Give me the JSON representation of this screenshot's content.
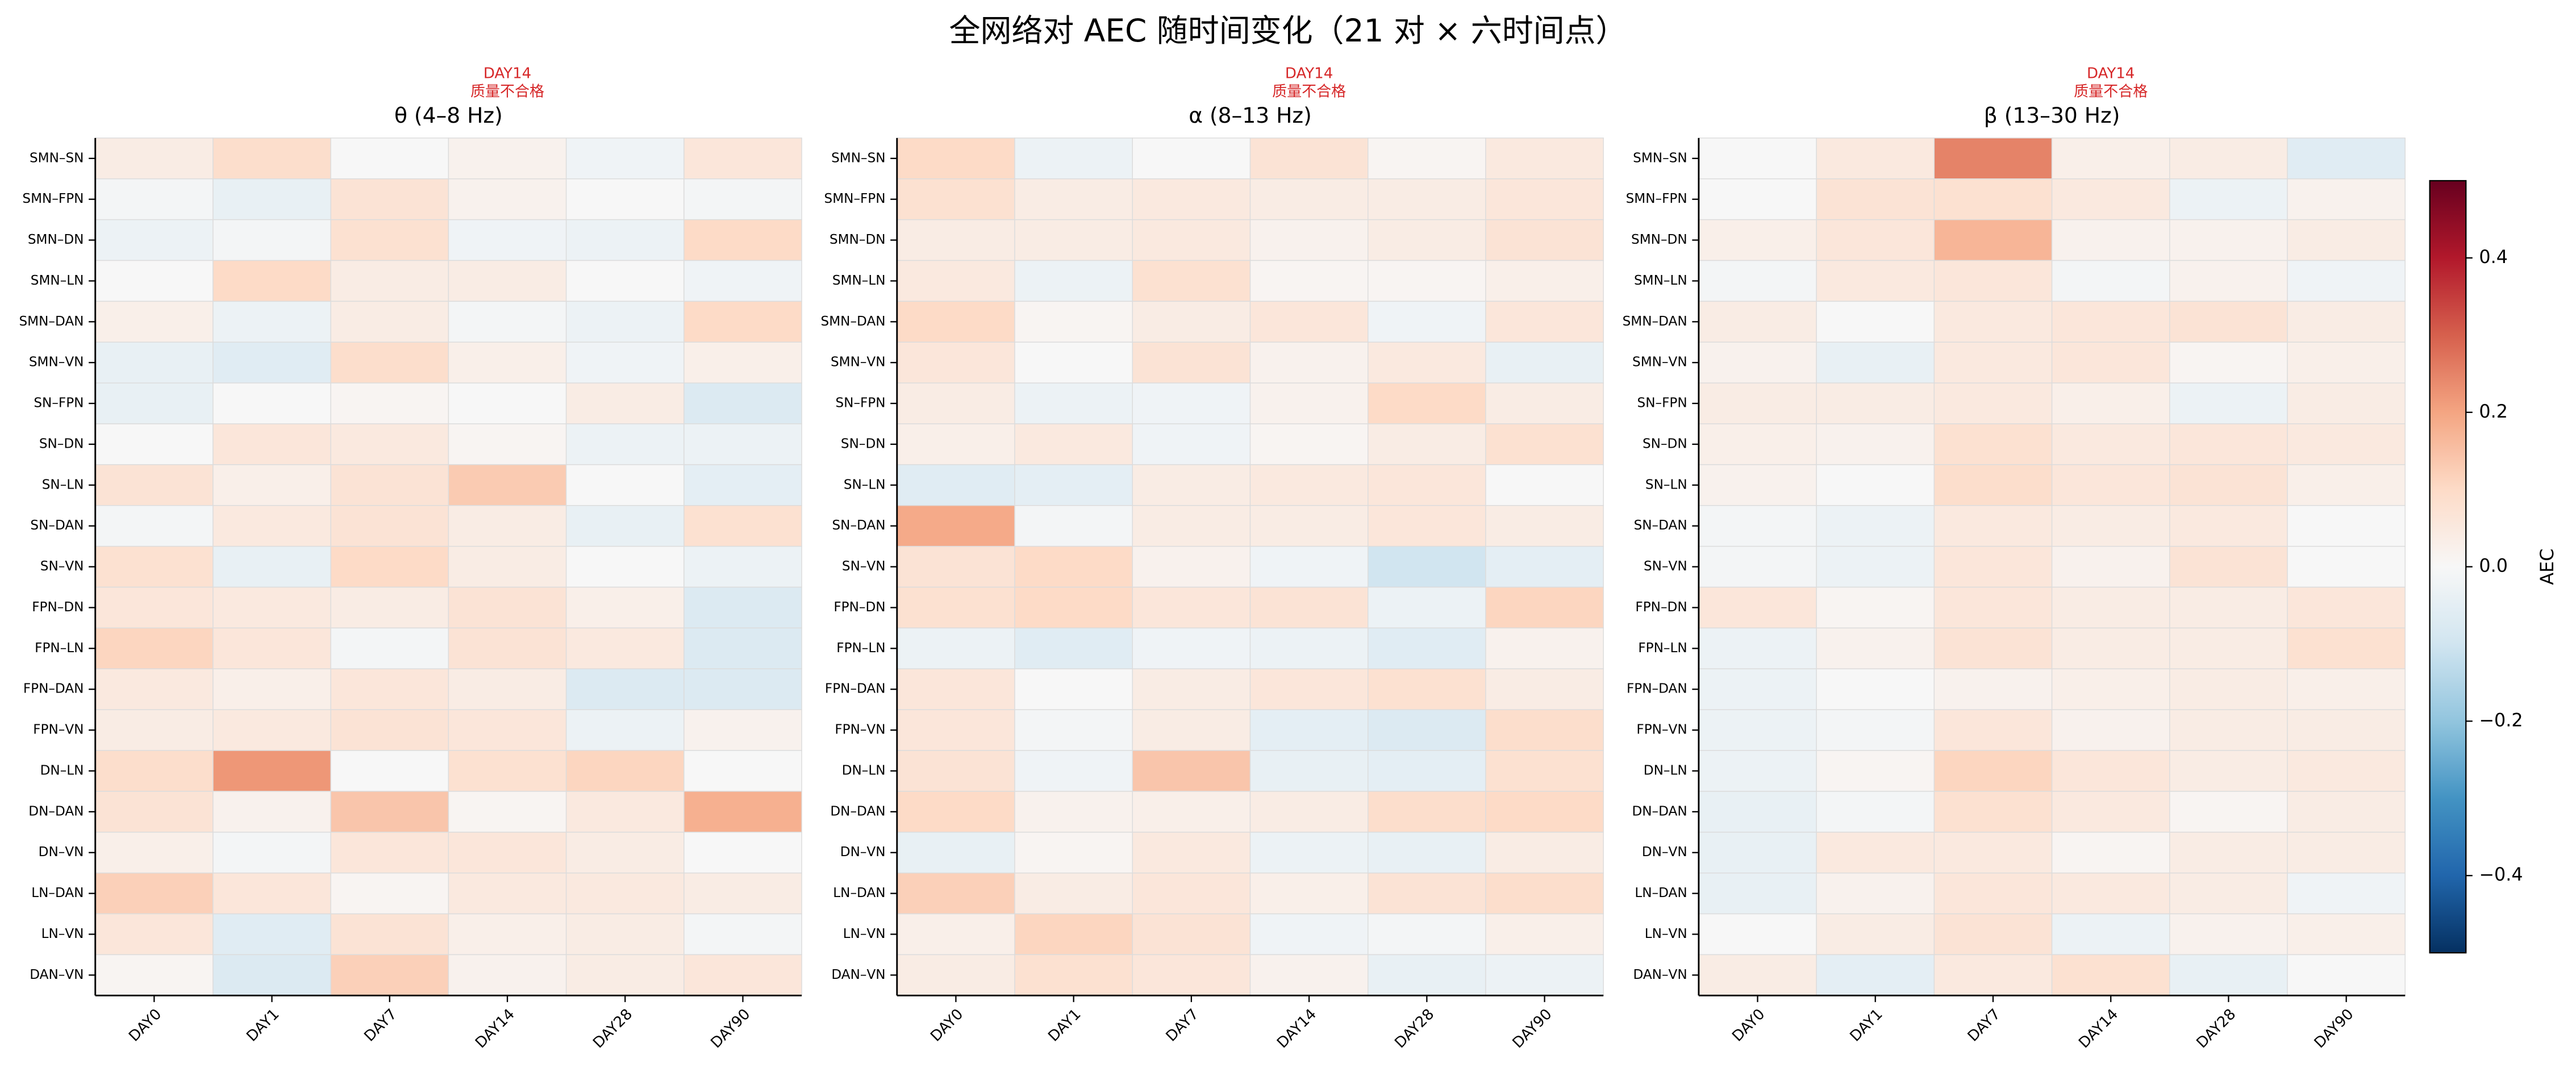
{
  "title": "全网络对 AEC 随时间变化（21 对 × 六时间点）",
  "colorbar": {
    "label": "AEC",
    "colormap": "RdBu_r",
    "vlim": [
      -0.5,
      0.5
    ],
    "ticks": [
      {
        "value": -0.4,
        "label": "−0.4"
      },
      {
        "value": -0.2,
        "label": "−0.2"
      },
      {
        "value": 0,
        "label": "0.0"
      },
      0.2,
      0.4
    ]
  },
  "chart_data": [
    {
      "type": "heatmap",
      "title": "θ (4–8 Hz)",
      "annotation": [
        "DAY14",
        "质量不合格"
      ],
      "categories": [
        "DAY0",
        "DAY1",
        "DAY7",
        "DAY14",
        "DAY28",
        "DAY90"
      ],
      "rows": [
        "SMN–SN",
        "SMN–FPN",
        "SMN–DN",
        "SMN–LN",
        "SMN–DAN",
        "SMN–VN",
        "SN–FPN",
        "SN–DN",
        "SN–LN",
        "SN–DAN",
        "SN–VN",
        "FPN–DN",
        "FPN–LN",
        "FPN–DAN",
        "FPN–VN",
        "DN–LN",
        "DN–DAN",
        "DN–VN",
        "LN–DAN",
        "LN–VN",
        "DAN–VN"
      ],
      "values": [
        [
          0.04,
          0.09,
          0.0,
          0.02,
          -0.02,
          0.06
        ],
        [
          -0.01,
          -0.04,
          0.07,
          0.02,
          0.0,
          -0.01
        ],
        [
          -0.03,
          -0.01,
          0.08,
          -0.02,
          -0.03,
          0.1
        ],
        [
          0.0,
          0.1,
          0.04,
          0.04,
          0.0,
          -0.02
        ],
        [
          0.03,
          -0.03,
          0.04,
          -0.01,
          -0.03,
          0.1
        ],
        [
          -0.04,
          -0.06,
          0.09,
          0.03,
          -0.02,
          0.03
        ],
        [
          -0.04,
          0.0,
          0.01,
          0.0,
          0.04,
          -0.07
        ],
        [
          0.0,
          0.06,
          0.05,
          0.01,
          -0.03,
          -0.03
        ],
        [
          0.07,
          0.03,
          0.07,
          0.13,
          0.0,
          -0.05
        ],
        [
          -0.01,
          0.05,
          0.07,
          0.04,
          -0.04,
          0.08
        ],
        [
          0.08,
          -0.04,
          0.1,
          0.04,
          0.0,
          -0.03
        ],
        [
          0.06,
          0.05,
          0.04,
          0.07,
          0.03,
          -0.07
        ],
        [
          0.11,
          0.06,
          -0.01,
          0.07,
          0.05,
          -0.07
        ],
        [
          0.05,
          0.03,
          0.06,
          0.04,
          -0.07,
          -0.07
        ],
        [
          0.04,
          0.05,
          0.07,
          0.06,
          -0.03,
          0.02
        ],
        [
          0.09,
          0.22,
          0.0,
          0.08,
          0.11,
          0.0
        ],
        [
          0.07,
          0.02,
          0.14,
          0.01,
          0.05,
          0.18
        ],
        [
          0.03,
          -0.01,
          0.06,
          0.06,
          0.04,
          0.0
        ],
        [
          0.12,
          0.06,
          0.01,
          0.05,
          0.05,
          0.04
        ],
        [
          0.06,
          -0.06,
          0.07,
          0.03,
          0.04,
          -0.01
        ],
        [
          0.01,
          -0.07,
          0.12,
          0.02,
          0.04,
          0.06
        ]
      ]
    },
    {
      "type": "heatmap",
      "title": "α (8–13 Hz)",
      "annotation": [
        "DAY14",
        "质量不合格"
      ],
      "categories": [
        "DAY0",
        "DAY1",
        "DAY7",
        "DAY14",
        "DAY28",
        "DAY90"
      ],
      "rows": [
        "SMN–SN",
        "SMN–FPN",
        "SMN–DN",
        "SMN–LN",
        "SMN–DAN",
        "SMN–VN",
        "SN–FPN",
        "SN–DN",
        "SN–LN",
        "SN–DAN",
        "SN–VN",
        "FPN–DN",
        "FPN–LN",
        "FPN–DAN",
        "FPN–VN",
        "DN–LN",
        "DN–DAN",
        "DN–VN",
        "LN–DAN",
        "LN–VN",
        "DAN–VN"
      ],
      "values": [
        [
          0.1,
          -0.03,
          0.0,
          0.07,
          0.01,
          0.05
        ],
        [
          0.08,
          0.04,
          0.05,
          0.04,
          0.04,
          0.06
        ],
        [
          0.04,
          0.04,
          0.05,
          0.02,
          0.04,
          0.07
        ],
        [
          0.05,
          -0.03,
          0.08,
          0.01,
          0.01,
          0.03
        ],
        [
          0.1,
          0.01,
          0.04,
          0.06,
          -0.02,
          0.06
        ],
        [
          0.06,
          0.0,
          0.07,
          0.02,
          0.05,
          -0.04
        ],
        [
          0.04,
          -0.03,
          -0.02,
          0.02,
          0.1,
          0.04
        ],
        [
          0.03,
          0.05,
          -0.02,
          0.01,
          0.04,
          0.08
        ],
        [
          -0.06,
          -0.05,
          0.04,
          0.05,
          0.06,
          0.0
        ],
        [
          0.19,
          -0.01,
          0.04,
          0.04,
          0.06,
          0.04
        ],
        [
          0.07,
          0.1,
          0.02,
          -0.02,
          -0.1,
          -0.05
        ],
        [
          0.08,
          0.1,
          0.06,
          0.07,
          -0.03,
          0.11
        ],
        [
          -0.03,
          -0.06,
          -0.02,
          -0.03,
          -0.06,
          0.02
        ],
        [
          0.06,
          0.0,
          0.04,
          0.06,
          0.08,
          0.04
        ],
        [
          0.06,
          -0.01,
          0.04,
          -0.05,
          -0.07,
          0.09
        ],
        [
          0.07,
          -0.02,
          0.14,
          -0.04,
          -0.05,
          0.08
        ],
        [
          0.1,
          0.02,
          0.03,
          0.04,
          0.09,
          0.1
        ],
        [
          -0.04,
          0.01,
          0.05,
          -0.03,
          -0.04,
          0.04
        ],
        [
          0.12,
          0.04,
          0.06,
          0.03,
          0.07,
          0.09
        ],
        [
          0.03,
          0.11,
          0.07,
          -0.02,
          -0.01,
          0.03
        ],
        [
          0.04,
          0.08,
          0.06,
          0.02,
          -0.04,
          -0.03
        ]
      ]
    },
    {
      "type": "heatmap",
      "title": "β (13–30 Hz)",
      "annotation": [
        "DAY14",
        "质量不合格"
      ],
      "categories": [
        "DAY0",
        "DAY1",
        "DAY7",
        "DAY14",
        "DAY28",
        "DAY90"
      ],
      "rows": [
        "SMN–SN",
        "SMN–FPN",
        "SMN–DN",
        "SMN–LN",
        "SMN–DAN",
        "SMN–VN",
        "SN–FPN",
        "SN–DN",
        "SN–LN",
        "SN–DAN",
        "SN–VN",
        "FPN–DN",
        "FPN–LN",
        "FPN–DAN",
        "FPN–VN",
        "DN–LN",
        "DN–DAN",
        "DN–VN",
        "LN–DAN",
        "LN–VN",
        "DAN–VN"
      ],
      "values": [
        [
          0.0,
          0.05,
          0.25,
          0.03,
          0.04,
          -0.06
        ],
        [
          0.0,
          0.07,
          0.08,
          0.05,
          -0.03,
          0.02
        ],
        [
          0.03,
          0.06,
          0.17,
          0.02,
          0.02,
          0.04
        ],
        [
          -0.01,
          0.05,
          0.06,
          -0.01,
          0.02,
          -0.02
        ],
        [
          0.04,
          0.0,
          0.05,
          0.06,
          0.07,
          0.04
        ],
        [
          0.02,
          -0.04,
          0.05,
          0.06,
          0.01,
          0.03
        ],
        [
          0.04,
          0.04,
          0.05,
          0.03,
          -0.03,
          0.04
        ],
        [
          0.03,
          0.02,
          0.08,
          0.05,
          0.06,
          0.05
        ],
        [
          0.02,
          0.0,
          0.09,
          0.06,
          0.07,
          0.03
        ],
        [
          -0.01,
          -0.03,
          0.05,
          0.04,
          0.05,
          0.0
        ],
        [
          -0.01,
          -0.03,
          0.06,
          0.02,
          0.07,
          0.0
        ],
        [
          0.06,
          0.01,
          0.06,
          0.04,
          0.04,
          0.06
        ],
        [
          -0.03,
          0.02,
          0.07,
          0.04,
          0.04,
          0.08
        ],
        [
          -0.03,
          0.0,
          0.02,
          0.03,
          0.04,
          0.03
        ],
        [
          -0.03,
          -0.01,
          0.06,
          0.02,
          0.04,
          0.04
        ],
        [
          -0.03,
          0.01,
          0.11,
          0.06,
          0.04,
          0.05
        ],
        [
          -0.04,
          -0.01,
          0.08,
          0.05,
          0.01,
          0.04
        ],
        [
          -0.04,
          0.05,
          0.05,
          0.01,
          0.04,
          0.04
        ],
        [
          -0.04,
          0.02,
          0.06,
          0.05,
          0.04,
          -0.02
        ],
        [
          0.0,
          0.04,
          0.07,
          -0.03,
          0.02,
          0.03
        ],
        [
          0.04,
          -0.05,
          0.05,
          0.08,
          -0.04,
          0.0
        ]
      ]
    }
  ]
}
